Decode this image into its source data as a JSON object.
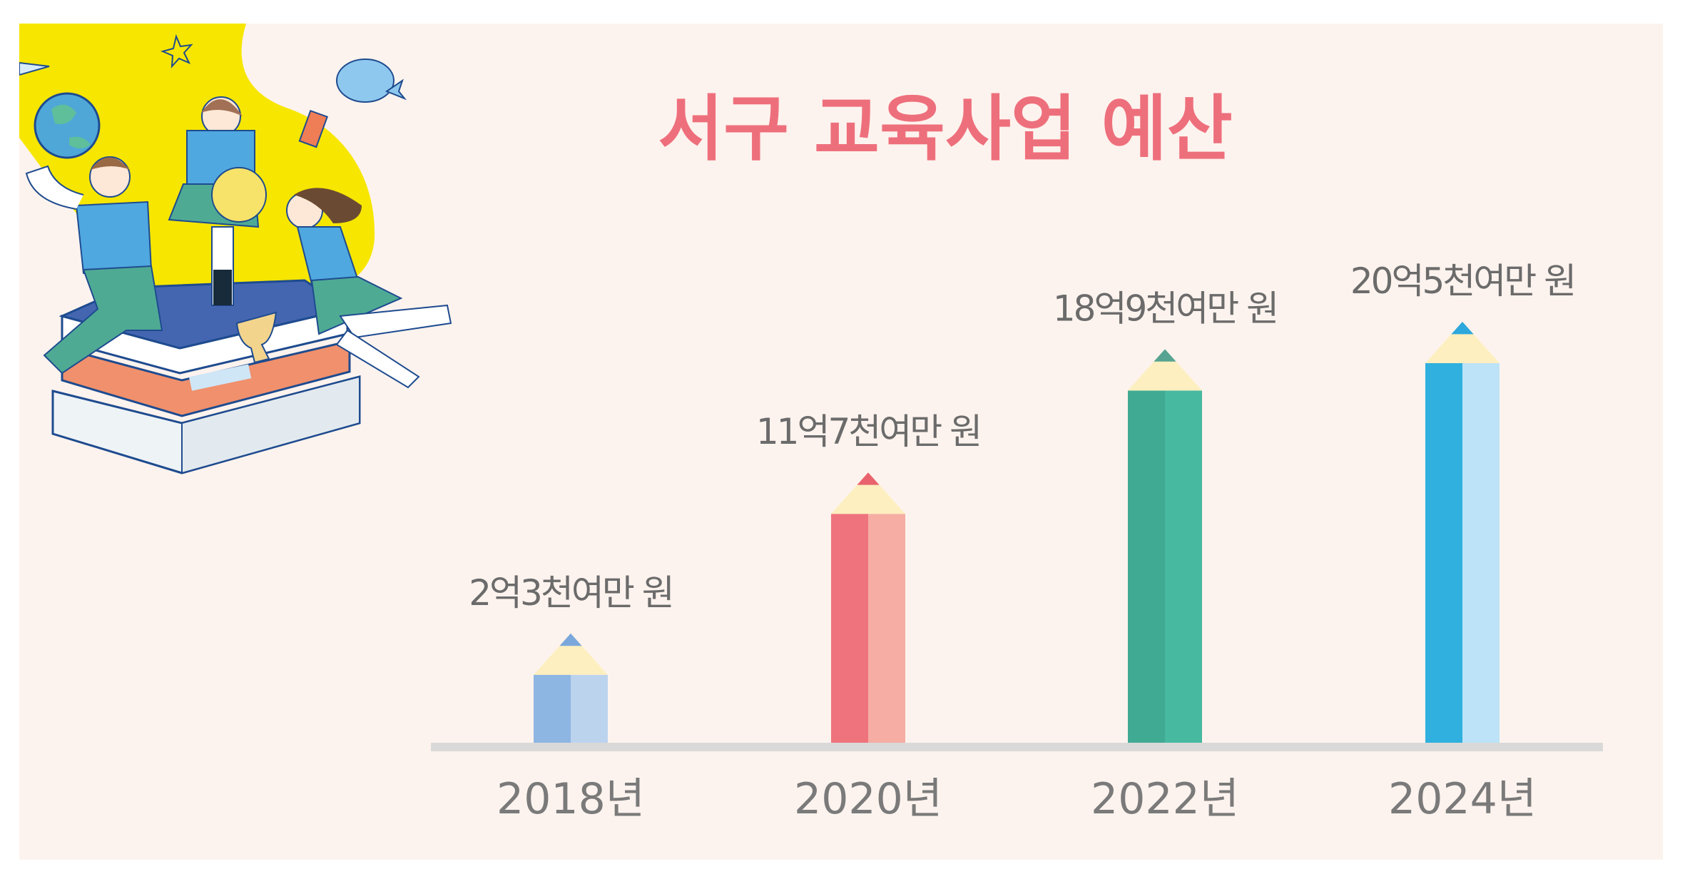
{
  "chart_data": {
    "type": "bar",
    "title": "서구 교육사업 예산",
    "categories": [
      "2018년",
      "2020년",
      "2022년",
      "2024년"
    ],
    "values": [
      2.3,
      11.7,
      18.9,
      20.5
    ],
    "value_unit": "억 원",
    "data_labels": [
      "2억3천여만 원",
      "11억7천여만 원",
      "18억9천여만 원",
      "20억5천여만 원"
    ],
    "xlabel": "",
    "ylabel": "",
    "grid": false,
    "style": "pencil bars",
    "colors": [
      {
        "dark": "#8db6e3",
        "light": "#bcd3ee",
        "tip": "#7aa7dc"
      },
      {
        "dark": "#ef737c",
        "light": "#f5ada4",
        "tip": "#e9636e"
      },
      {
        "dark": "#41aa93",
        "light": "#47b9a0",
        "tip": "#56a391"
      },
      {
        "dark": "#2fb0df",
        "light": "#bce3f7",
        "tip": "#2ca8dc"
      }
    ],
    "wood_color": "#fdefbf",
    "baseline_color": "#d9d9d9"
  },
  "background_color": "#fdf3ee",
  "illustration": "students-on-books"
}
